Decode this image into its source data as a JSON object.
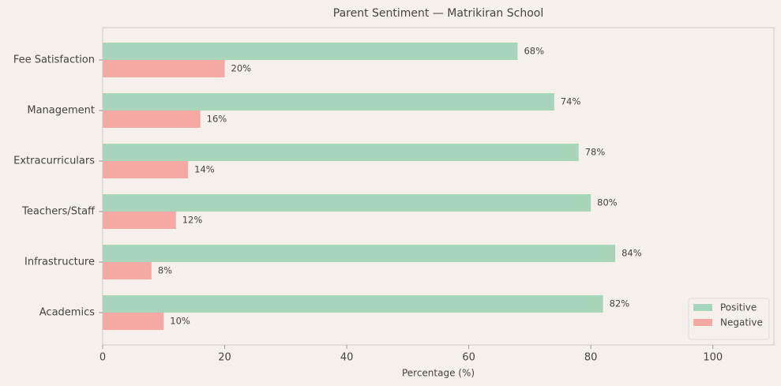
{
  "chart_data": {
    "type": "barh",
    "title": "Parent Sentiment — Matrikiran School",
    "xlabel": "Percentage (%)",
    "categories": [
      "Fee Satisfaction",
      "Management",
      "Extracurriculars",
      "Teachers/Staff",
      "Infrastructure",
      "Academics"
    ],
    "series": [
      {
        "name": "Positive",
        "color": "#a8d5ba",
        "values": [
          68,
          74,
          78,
          80,
          84,
          82
        ],
        "value_labels": [
          "68%",
          "74%",
          "78%",
          "80%",
          "84%",
          "82%"
        ]
      },
      {
        "name": "Negative",
        "color": "#f4a9a5",
        "values": [
          20,
          16,
          14,
          12,
          8,
          10
        ],
        "value_labels": [
          "20%",
          "16%",
          "14%",
          "12%",
          "8%",
          "10%"
        ]
      }
    ],
    "xlim": [
      0,
      110
    ],
    "xticks": [
      0,
      20,
      40,
      60,
      80,
      100
    ],
    "legend": "lower right"
  }
}
